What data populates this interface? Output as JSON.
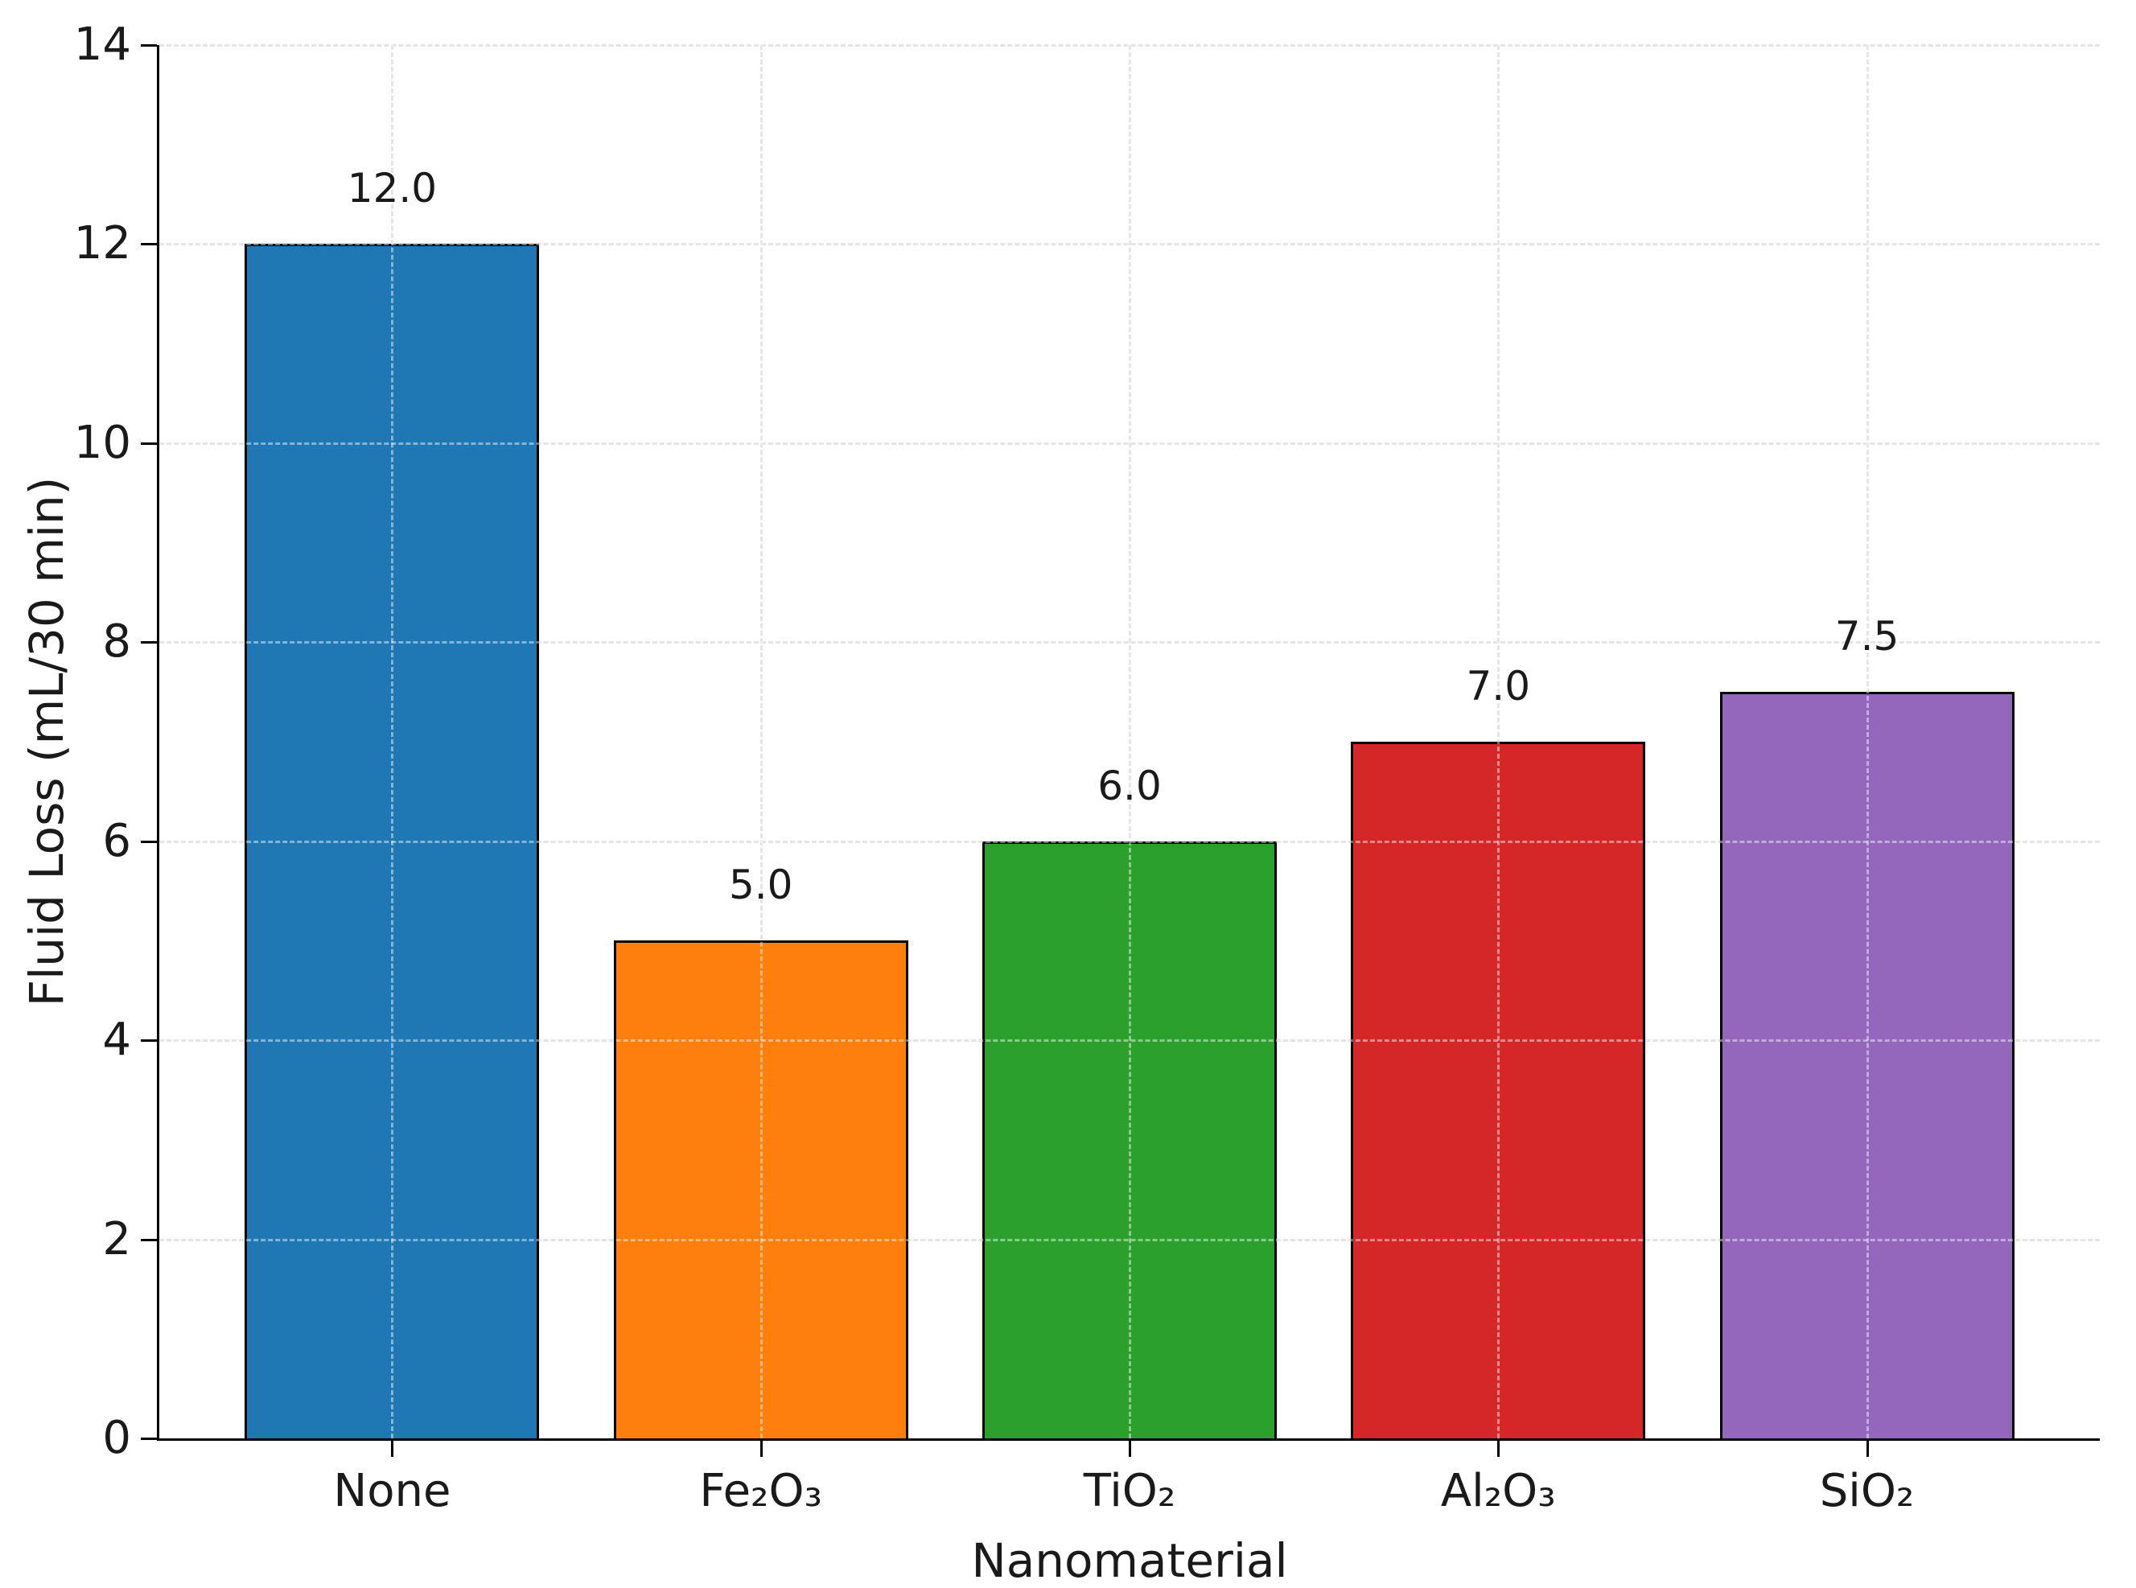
{
  "figure": {
    "background": "#ffffff"
  },
  "chart_data": {
    "type": "bar",
    "title": "",
    "xlabel": "Nanomaterial",
    "ylabel": "Fluid Loss (mL/30 min)",
    "categories": [
      "None",
      "Fe₂O₃",
      "TiO₂",
      "Al₂O₃",
      "SiO₂"
    ],
    "values": [
      12.0,
      5.0,
      6.0,
      7.0,
      7.5
    ],
    "value_labels": [
      "12.0",
      "5.0",
      "6.0",
      "7.0",
      "7.5"
    ],
    "bar_colors": [
      "#1f77b4",
      "#ff7f0e",
      "#2ca02c",
      "#d62728",
      "#9467bd"
    ],
    "bar_edge_color": "#000000",
    "ylim": [
      0,
      14
    ],
    "yticks": [
      0,
      2,
      4,
      6,
      8,
      10,
      12,
      14
    ],
    "ytick_labels": [
      "0",
      "2",
      "4",
      "6",
      "8",
      "10",
      "12",
      "14"
    ],
    "grid": "dashed, both axes, light gray, visible through bars",
    "legend": "none",
    "spines": "left and bottom only"
  }
}
